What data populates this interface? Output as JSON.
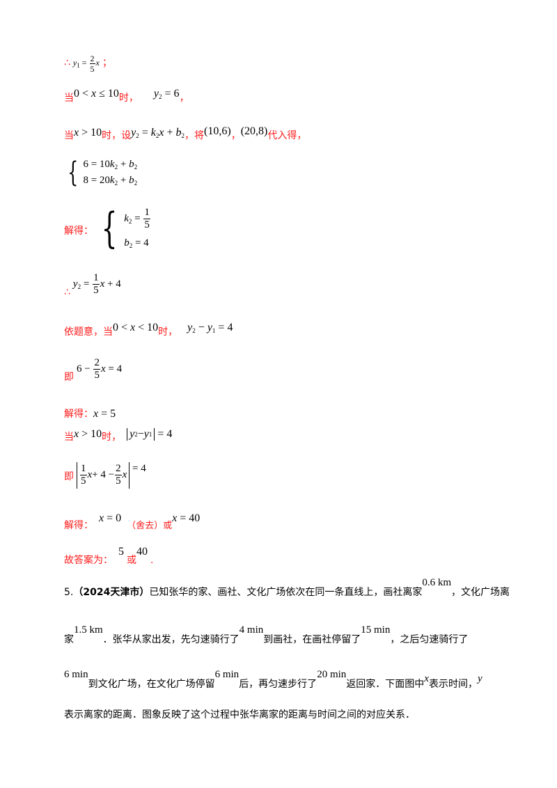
{
  "lines": {
    "l1_prefix": "∴",
    "l1_suffix": "；",
    "l2_a": "当",
    "l2_b": "时，",
    "l2_c": "，",
    "l3_a": "当",
    "l3_b": "时，设",
    "l3_c": "，将",
    "l3_d": "，",
    "l3_e": "代入得，",
    "l5_a": "解得：",
    "l6_a": "∴",
    "l7_a": "依题意，当",
    "l7_b": "时，",
    "l8_a": "即",
    "l9_a": "解得：",
    "l10_a": "当",
    "l10_b": "时，",
    "l11_a": "即",
    "l12_a": "解得：",
    "l12_b": "（舍去）或",
    "l13_a": "故答案为：",
    "l13_b": "或",
    "l13_c": "."
  },
  "question": {
    "number": "5.",
    "source": "（2024天津市）",
    "line1": "已知张华的家、画社、文化广场依次在同一条直线上，画社离家",
    "v_06": "0.6 km",
    "line1_end": "，文化广场离",
    "line2_a": "家",
    "v_15": "1.5 km",
    "line2_b": "．张华从家出发，先匀速骑行了",
    "v_4": "4 min",
    "line2_c": "到画社，在画社停留了",
    "v_15min": "15 min",
    "line2_d": "，之后匀速骑行了",
    "v_6a": "6 min",
    "line3_a": "到文化广场，在文化广场停留",
    "v_6b": "6 min",
    "line3_b": "后，再匀速步行了",
    "v_20": "20 min",
    "line3_c": "返回家．下面图中",
    "var_x": "x",
    "line3_d": "表示时间，",
    "var_y": "y",
    "line4": "表示离家的距离．图象反映了这个过程中张华离家的距离与时间之间的对应关系．"
  }
}
